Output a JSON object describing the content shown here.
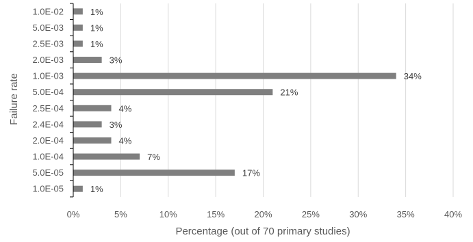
{
  "chart_data": {
    "type": "bar",
    "orientation": "horizontal",
    "categories": [
      "1.0E-02",
      "5.0E-03",
      "2.5E-03",
      "2.0E-03",
      "1.0E-03",
      "5.0E-04",
      "2.5E-04",
      "2.4E-04",
      "2.0E-04",
      "1.0E-04",
      "5.0E-05",
      "1.0E-05"
    ],
    "values": [
      1,
      1,
      1,
      3,
      34,
      21,
      4,
      3,
      4,
      7,
      17,
      1
    ],
    "data_labels": [
      "1%",
      "1%",
      "1%",
      "3%",
      "34%",
      "21%",
      "4%",
      "3%",
      "4%",
      "7%",
      "17%",
      "1%"
    ],
    "xlabel": "Percentage (out of 70 primary studies)",
    "ylabel": "Failure rate",
    "xlim": [
      0,
      40
    ],
    "xticks": [
      0,
      5,
      10,
      15,
      20,
      25,
      30,
      35,
      40
    ],
    "xtick_labels": [
      "0%",
      "5%",
      "10%",
      "15%",
      "20%",
      "25%",
      "30%",
      "35%",
      "40%"
    ],
    "grid": "vertical",
    "legend": "none",
    "colors": {
      "bar": "#7f7f7f",
      "grid": "#d9d9d9",
      "axis": "#000000"
    }
  }
}
